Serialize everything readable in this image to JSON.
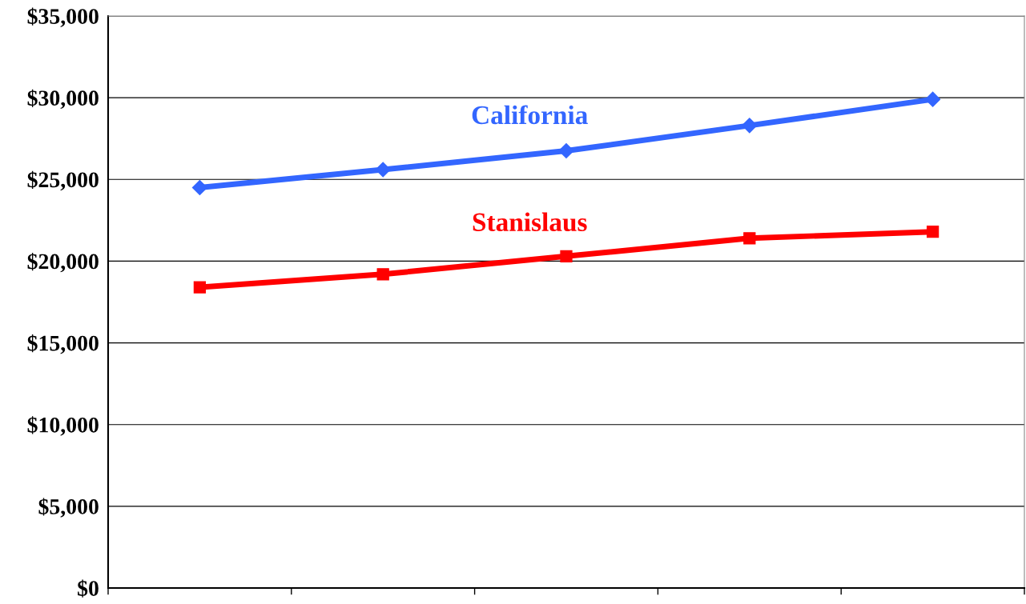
{
  "chart_data": {
    "type": "line",
    "categories": [
      null,
      null,
      null,
      null,
      null
    ],
    "series": [
      {
        "name": "California",
        "color": "#3366ff",
        "marker": "diamond",
        "values": [
          24500,
          25600,
          26750,
          28300,
          29900
        ]
      },
      {
        "name": "Stanislaus",
        "color": "#ff0000",
        "marker": "square",
        "values": [
          18400,
          19200,
          20300,
          21400,
          21800
        ]
      }
    ],
    "ylim": [
      0,
      35000
    ],
    "yticks": [
      {
        "value": 0,
        "label": "$0"
      },
      {
        "value": 5000,
        "label": "$5,000"
      },
      {
        "value": 10000,
        "label": "$10,000"
      },
      {
        "value": 15000,
        "label": "$15,000"
      },
      {
        "value": 20000,
        "label": "$20,000"
      },
      {
        "value": 25000,
        "label": "$25,000"
      },
      {
        "value": 30000,
        "label": "$30,000"
      },
      {
        "value": 35000,
        "label": "$35,000"
      }
    ],
    "grid": "y",
    "legend": false,
    "line_style": "solid"
  }
}
